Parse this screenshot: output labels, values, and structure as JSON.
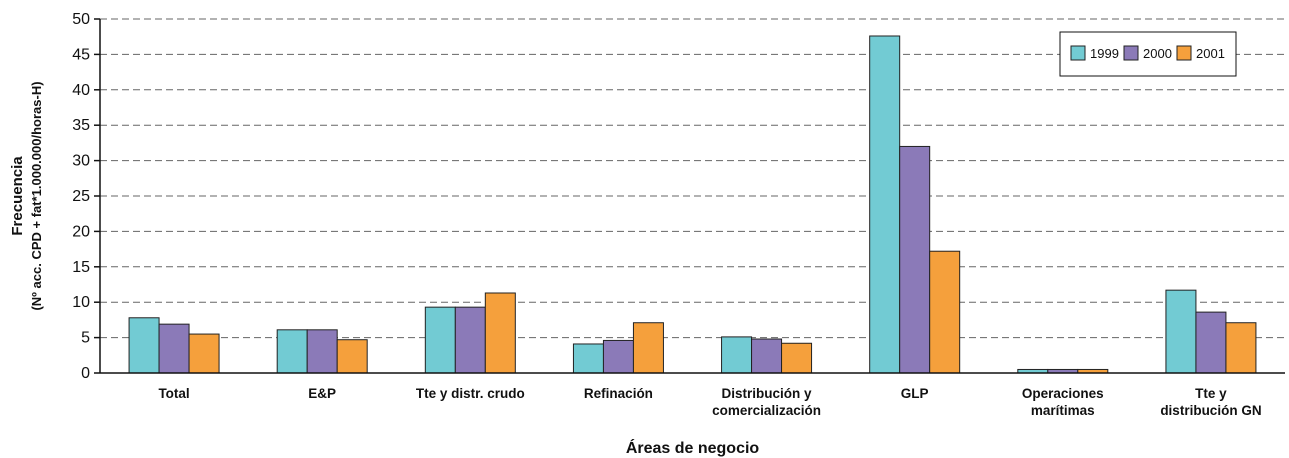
{
  "chart_data": {
    "type": "bar",
    "xlabel": "Áreas de negocio",
    "ylabel": "Frecuencia",
    "ylabel_sub": "(Nº acc. CPD + fat*1.000.000/horas-H)",
    "ylim": [
      0,
      50
    ],
    "yticks": [
      0,
      5,
      10,
      15,
      20,
      25,
      30,
      35,
      40,
      45,
      50
    ],
    "grid": true,
    "legend_position": "top-right",
    "categories": [
      [
        "Total"
      ],
      [
        "E&P"
      ],
      [
        "Tte y distr. crudo"
      ],
      [
        "Refinación"
      ],
      [
        "Distribución y",
        "comercialización"
      ],
      [
        "GLP"
      ],
      [
        "Operaciones",
        "marítimas"
      ],
      [
        "Tte y",
        "distribución GN"
      ]
    ],
    "series": [
      {
        "name": "1999",
        "color": "#72cbd3",
        "values": [
          7.8,
          6.1,
          9.3,
          4.1,
          5.1,
          47.6,
          0.5,
          11.7
        ]
      },
      {
        "name": "2000",
        "color": "#8b7ab8",
        "values": [
          6.9,
          6.1,
          9.3,
          4.6,
          4.8,
          32.0,
          0.5,
          8.6
        ]
      },
      {
        "name": "2001",
        "color": "#f5a03c",
        "values": [
          5.5,
          4.7,
          11.3,
          7.1,
          4.2,
          17.2,
          0.5,
          7.1
        ]
      }
    ]
  }
}
